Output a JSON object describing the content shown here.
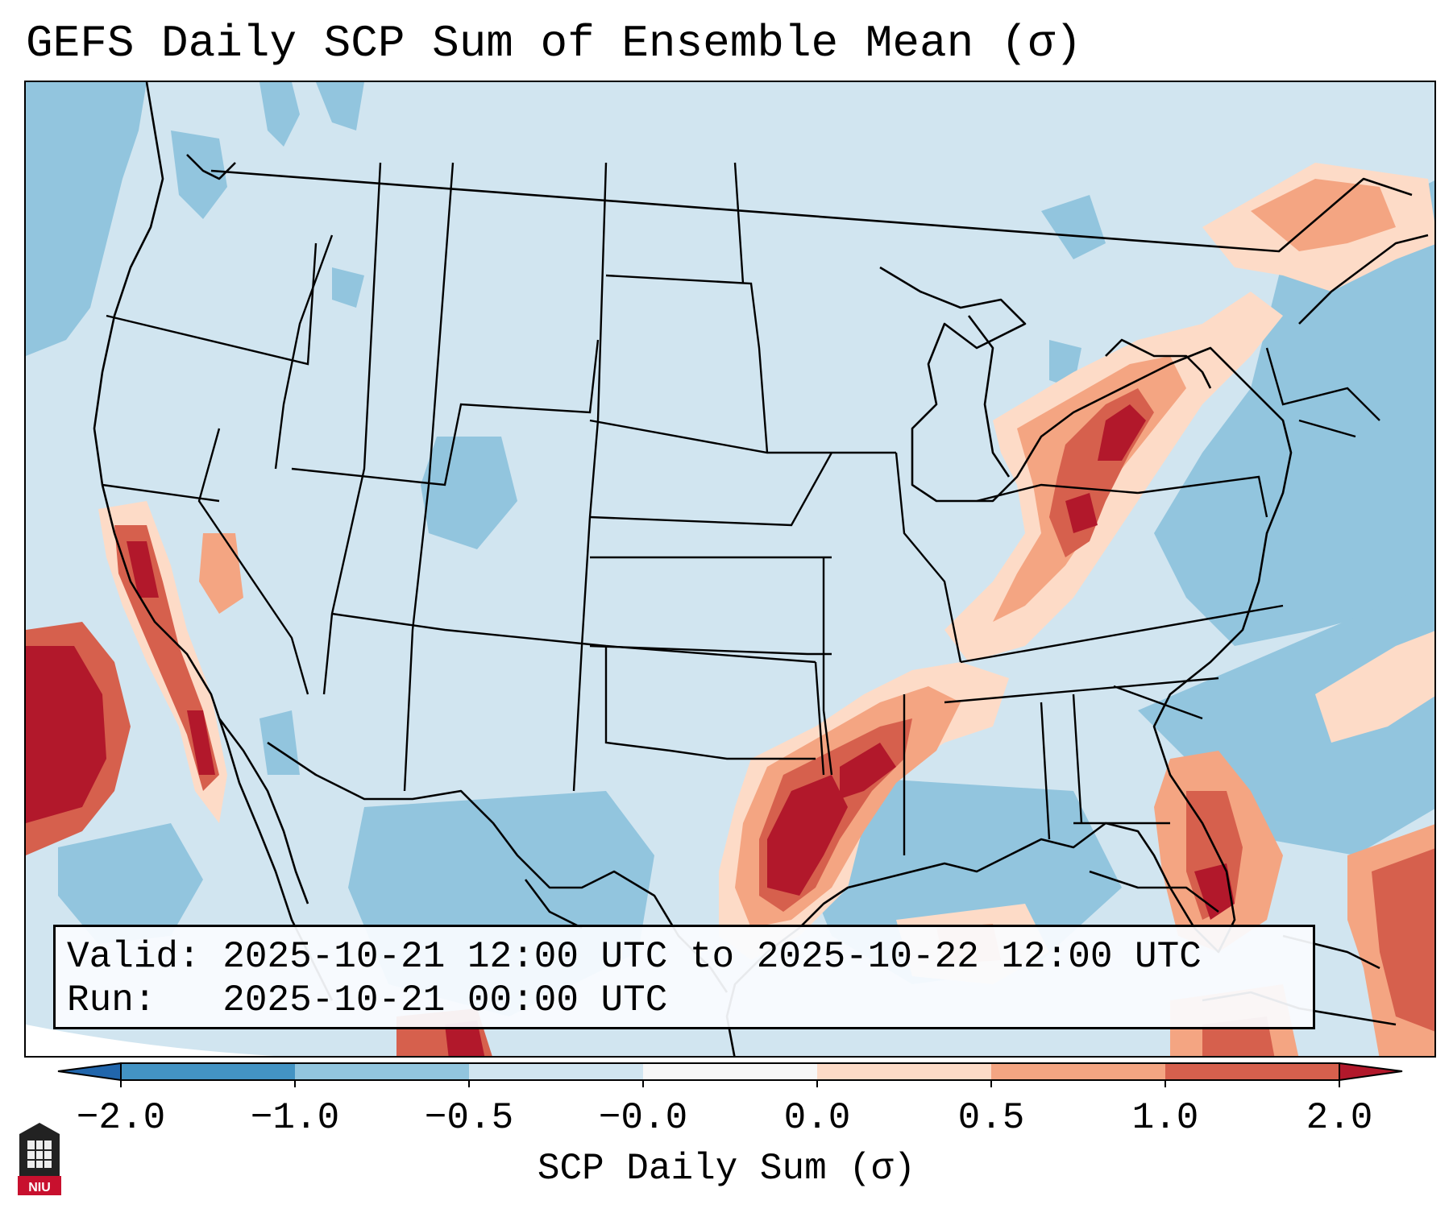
{
  "title": "GEFS Daily SCP Sum of Ensemble Mean (σ)",
  "info": {
    "valid_label": "Valid:",
    "valid_value": "2025-10-21 12:00 UTC to 2025-10-22 12:00 UTC",
    "run_label": "Run:",
    "run_value": "2025-10-21 00:00 UTC"
  },
  "colorbar": {
    "label": "SCP Daily Sum (σ)",
    "ticks": [
      "−2.0",
      "−1.0",
      "−0.5",
      "−0.0",
      "0.0",
      "0.5",
      "1.0",
      "2.0"
    ],
    "bins": [
      {
        "from": -2.0,
        "to": -1.0,
        "color": "#4393c3"
      },
      {
        "from": -1.0,
        "to": -0.5,
        "color": "#92c5de"
      },
      {
        "from": -0.5,
        "to": -0.0,
        "color": "#d1e5f0"
      },
      {
        "from": -0.0,
        "to": 0.0,
        "color": "#f7f7f7"
      },
      {
        "from": 0.0,
        "to": 0.5,
        "color": "#fddbc7"
      },
      {
        "from": 0.5,
        "to": 1.0,
        "color": "#f4a582"
      },
      {
        "from": 1.0,
        "to": 2.0,
        "color": "#d6604d"
      }
    ],
    "under_color": "#2166ac",
    "over_color": "#b2182b"
  },
  "colors": {
    "ocean_background": "#cfe3ef",
    "neg_strong": "#92c5de",
    "pos_light": "#fddbc7",
    "pos_mid": "#f4a582",
    "pos_high": "#d6604d",
    "pos_max": "#b2182b"
  },
  "logo_text": "NIU"
}
